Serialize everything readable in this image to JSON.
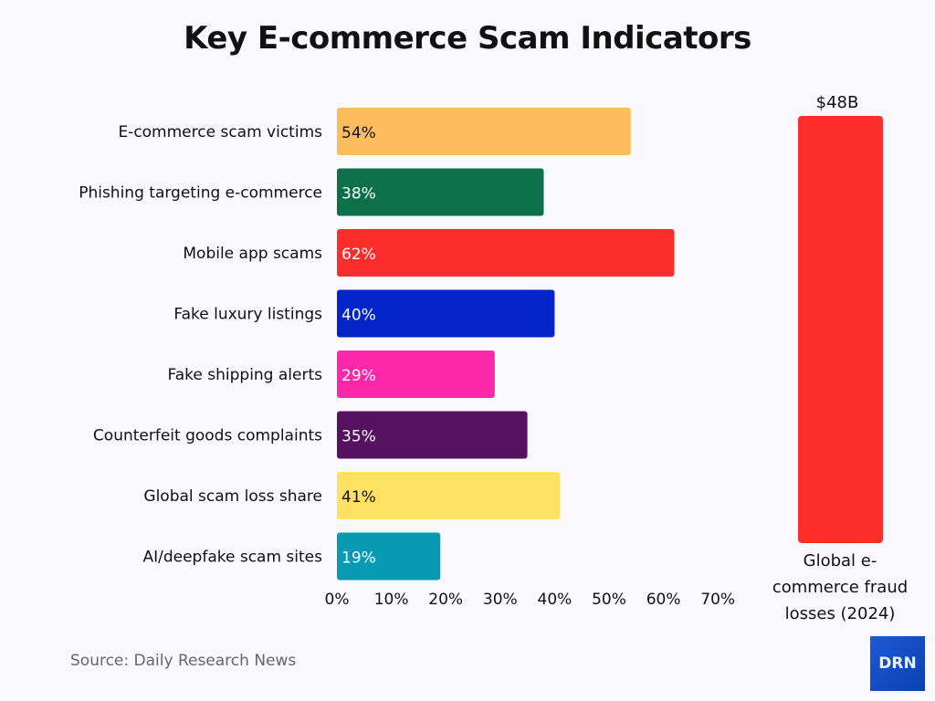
{
  "chart_data": [
    {
      "type": "bar",
      "orientation": "horizontal",
      "title": "Key E-commerce Scam Indicators",
      "categories": [
        "E-commerce scam victims",
        "Phishing targeting e-commerce",
        "Mobile app scams",
        "Fake luxury listings",
        "Fake shipping alerts",
        "Counterfeit goods complaints",
        "Global scam loss share",
        "AI/deepfake scam sites"
      ],
      "values": [
        54,
        38,
        62,
        40,
        29,
        35,
        41,
        19
      ],
      "data_labels": [
        "54%",
        "38%",
        "62%",
        "40%",
        "29%",
        "35%",
        "41%",
        "19%"
      ],
      "colors": [
        "#fdbd5c",
        "#0c704d",
        "#fd2d2c",
        "#0324c8",
        "#fd27a9",
        "#561260",
        "#fee062",
        "#079ab2"
      ],
      "label_colors": [
        "#111111",
        "#ffffff",
        "#ffffff",
        "#ffffff",
        "#ffffff",
        "#ffffff",
        "#111111",
        "#ffffff"
      ],
      "xlim": [
        0,
        70
      ],
      "xticks": [
        "0%",
        "10%",
        "20%",
        "30%",
        "40%",
        "50%",
        "60%",
        "70%"
      ],
      "grid": false
    },
    {
      "type": "bar",
      "categories": [
        "Global e-commerce fraud losses (2024)"
      ],
      "category_lines": [
        "Global e-",
        "commerce fraud",
        "losses (2024)"
      ],
      "values": [
        48
      ],
      "data_labels": [
        "$48B"
      ],
      "colors": [
        "#fd2d2c"
      ]
    }
  ],
  "source": "Source: Daily Research News",
  "logo": "DRN"
}
